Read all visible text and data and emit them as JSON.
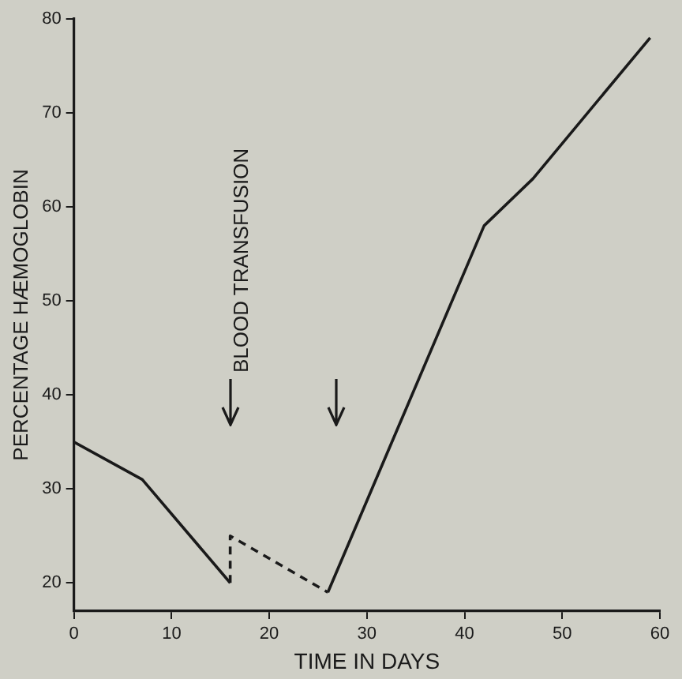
{
  "chart_data": {
    "type": "line",
    "xlabel": "TIME IN DAYS",
    "ylabel": "PERCENTAGE HÆMOGLOBIN",
    "xlim": [
      0,
      60
    ],
    "xticks": [
      0,
      10,
      20,
      30,
      40,
      50,
      60
    ],
    "ylim": [
      17,
      80
    ],
    "yticks": [
      20,
      30,
      40,
      50,
      60,
      70,
      80
    ],
    "grid": false,
    "legend": false,
    "marker": "none",
    "series": [
      {
        "color": "#1a1a1a",
        "line_style": "solid",
        "x": [
          0,
          7,
          16
        ],
        "values": [
          35,
          31,
          20
        ]
      },
      {
        "color": "#1a1a1a",
        "line_style": "dashed",
        "x": [
          16,
          16,
          26
        ],
        "values": [
          20,
          25,
          19
        ]
      },
      {
        "color": "#1a1a1a",
        "line_style": "solid",
        "x": [
          26,
          42,
          47,
          59
        ],
        "values": [
          19,
          58,
          63,
          78
        ]
      }
    ],
    "annotations": [
      "BLOOD TRANSFUSION"
    ]
  }
}
